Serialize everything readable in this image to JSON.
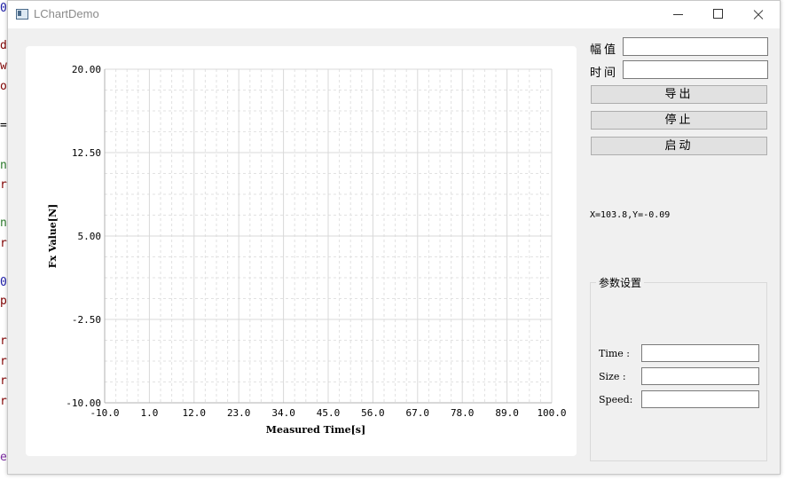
{
  "background_code": {
    "chars": [
      {
        "text": "0",
        "color": "#1a1aa6"
      },
      {
        "text": "d",
        "color": "#7f0000"
      },
      {
        "text": "w",
        "color": "#7f0000"
      },
      {
        "text": "o",
        "color": "#7f0000"
      },
      {
        "text": "=",
        "color": "#000000"
      },
      {
        "text": "n",
        "color": "#2b7a2b"
      },
      {
        "text": "r",
        "color": "#7f0000"
      },
      {
        "text": "n",
        "color": "#2b7a2b"
      },
      {
        "text": "r",
        "color": "#7f0000"
      },
      {
        "text": "0",
        "color": "#1a1aa6"
      },
      {
        "text": "p",
        "color": "#7f0000"
      },
      {
        "text": "r",
        "color": "#7f0000"
      },
      {
        "text": "r",
        "color": "#7f0000"
      },
      {
        "text": "r",
        "color": "#7f0000"
      },
      {
        "text": "r",
        "color": "#7f0000"
      },
      {
        "text": "e",
        "color": "#7a2ba0"
      }
    ]
  },
  "window": {
    "title": "LChartDemo"
  },
  "top_fields": {
    "amplitude_label": "幅值",
    "amplitude_value": "",
    "time_label": "时间",
    "time_value": ""
  },
  "buttons": {
    "export": "导出",
    "stop": "停止",
    "start": "启动"
  },
  "coordinate_readout": "X=103.8,Y=-0.09",
  "params": {
    "title": "参数设置",
    "time_label": "Time :",
    "time_value": "",
    "size_label": "Size :",
    "size_value": "",
    "speed_label": "Speed:",
    "speed_value": ""
  },
  "chart_data": {
    "type": "line",
    "xlabel": "Measured Time[s]",
    "ylabel": "Fx Value[N]",
    "xlim": [
      -10.0,
      100.0
    ],
    "ylim": [
      -10.0,
      20.0
    ],
    "x_ticks": [
      "-10.0",
      "1.0",
      "12.0",
      "23.0",
      "34.0",
      "45.0",
      "56.0",
      "67.0",
      "78.0",
      "89.0",
      "100.0"
    ],
    "y_ticks": [
      "20.00",
      "12.50",
      "5.00",
      "-2.50",
      "-10.00"
    ],
    "grid": true,
    "minor_grid": true,
    "series": []
  }
}
